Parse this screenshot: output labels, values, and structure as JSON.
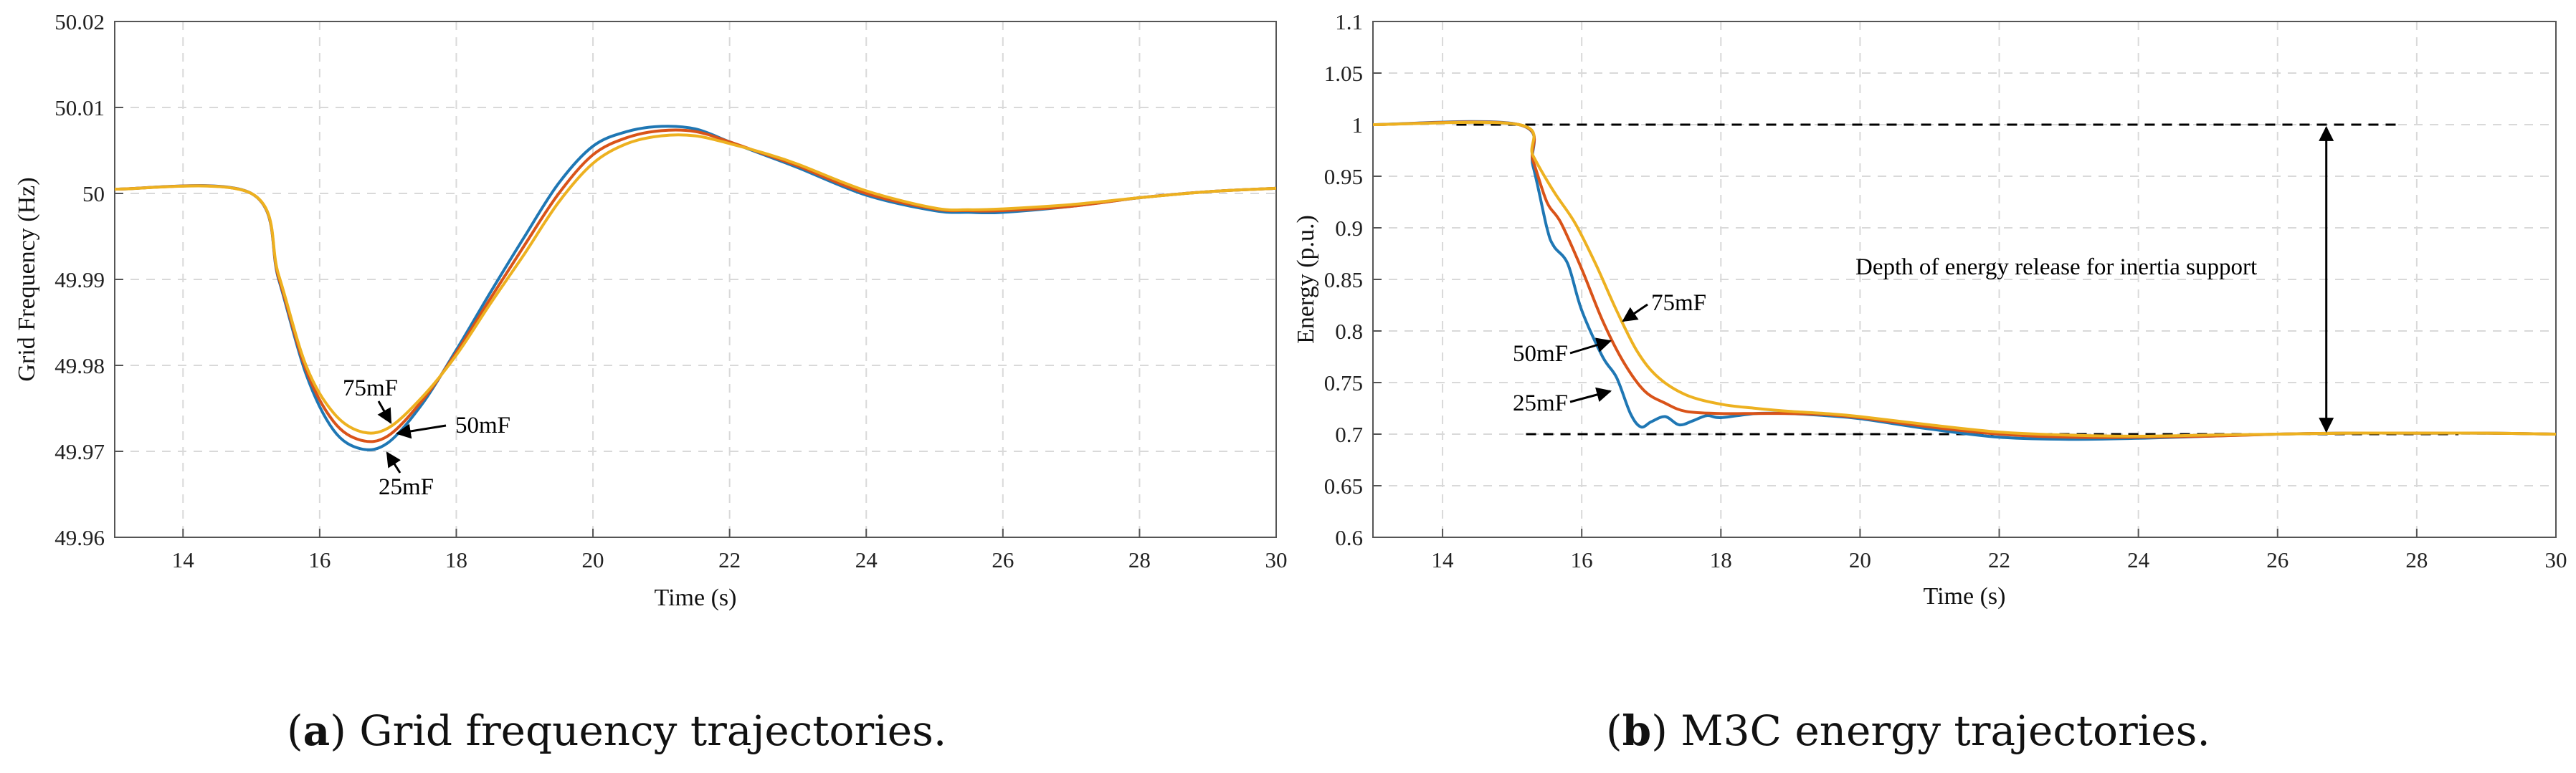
{
  "colors": {
    "blue": "#1f77b4",
    "orange": "#d95319",
    "yellow": "#edb120"
  },
  "panels": [
    {
      "caption_prefix": "(",
      "caption_letter": "a",
      "caption_text": ") Grid frequency trajectories.",
      "chart_data": {
        "type": "line",
        "xlabel": "Time (s)",
        "ylabel": "Grid Frequency (Hz)",
        "xlim": [
          13,
          30
        ],
        "ylim": [
          49.96,
          50.02
        ],
        "xticks": [
          "14",
          "16",
          "18",
          "20",
          "22",
          "24",
          "26",
          "28",
          "30"
        ],
        "yticks": [
          "49.96",
          "49.97",
          "49.98",
          "49.99",
          "50",
          "50.01",
          "50.02"
        ],
        "grid": true,
        "series": [
          {
            "name": "25mF",
            "color": "blue",
            "x": [
              13,
              15,
              15.4,
              15.8,
              16.2,
              16.6,
              17.0,
              17.5,
              18,
              18.5,
              19,
              19.5,
              20,
              20.5,
              21,
              21.5,
              22,
              22.5,
              23,
              24,
              25,
              25.5,
              26,
              27,
              28,
              29,
              30
            ],
            "y": [
              50.0005,
              50.0,
              49.99,
              49.979,
              49.9725,
              49.9703,
              49.971,
              49.9755,
              49.9818,
              49.9885,
              49.995,
              50.0012,
              50.0055,
              50.0072,
              50.0078,
              50.0075,
              50.006,
              50.0045,
              50.003,
              49.9998,
              49.998,
              49.9978,
              49.9978,
              49.9985,
              49.9995,
              50.0002,
              50.0006
            ]
          },
          {
            "name": "50mF",
            "color": "orange",
            "x": [
              13,
              15,
              15.4,
              15.8,
              16.2,
              16.6,
              17.0,
              17.5,
              18,
              18.5,
              19,
              19.5,
              20,
              20.5,
              21,
              21.5,
              22,
              22.5,
              23,
              24,
              25,
              25.5,
              26,
              27,
              28,
              29,
              30
            ],
            "y": [
              50.0005,
              50.0,
              49.9902,
              49.9795,
              49.9735,
              49.9713,
              49.9718,
              49.9759,
              49.9815,
              49.9878,
              49.994,
              50.0,
              50.0045,
              50.0065,
              50.0073,
              50.0072,
              50.006,
              50.0046,
              50.0032,
              50.0,
              49.9982,
              49.998,
              49.998,
              49.9985,
              49.9995,
              50.0002,
              50.0006
            ]
          },
          {
            "name": "75mF",
            "color": "yellow",
            "x": [
              13,
              15,
              15.4,
              15.8,
              16.2,
              16.6,
              17.0,
              17.5,
              18,
              18.5,
              19,
              19.5,
              20,
              20.5,
              21,
              21.5,
              22,
              22.5,
              23,
              24,
              25,
              25.5,
              26,
              27,
              28,
              29,
              30
            ],
            "y": [
              50.0005,
              50.0,
              49.9905,
              49.98,
              49.9745,
              49.9723,
              49.9727,
              49.9763,
              49.9812,
              49.9872,
              49.993,
              49.999,
              50.0035,
              50.0058,
              50.0067,
              50.0067,
              50.0058,
              50.0047,
              50.0034,
              50.0003,
              49.9983,
              49.9981,
              49.9982,
              49.9987,
              49.9995,
              50.0002,
              50.0006
            ]
          }
        ],
        "annotations": [
          {
            "text": "75mF"
          },
          {
            "text": "50mF"
          },
          {
            "text": "25mF"
          }
        ]
      }
    },
    {
      "caption_prefix": "(",
      "caption_letter": "b",
      "caption_text": ") M3C energy trajectories.",
      "chart_data": {
        "type": "line",
        "xlabel": "Time (s)",
        "ylabel": "Energy (p.u.)",
        "xlim": [
          13,
          30
        ],
        "ylim": [
          0.6,
          1.1
        ],
        "xticks": [
          "14",
          "16",
          "18",
          "20",
          "22",
          "24",
          "26",
          "28",
          "30"
        ],
        "yticks": [
          "0.6",
          "0.65",
          "0.7",
          "0.75",
          "0.8",
          "0.85",
          "0.9",
          "0.95",
          "1",
          "1.05",
          "1.1"
        ],
        "grid": true,
        "series": [
          {
            "name": "25mF",
            "color": "blue",
            "x": [
              13,
              15.1,
              15.3,
              15.5,
              15.6,
              15.8,
              16.0,
              16.3,
              16.5,
              16.7,
              16.85,
              17.0,
              17.2,
              17.4,
              17.6,
              17.8,
              18,
              18.5,
              19,
              19.5,
              20,
              21,
              22,
              23,
              24,
              25,
              26,
              27,
              28,
              29,
              30
            ],
            "y": [
              1.0,
              1.0,
              0.96,
              0.9,
              0.882,
              0.865,
              0.82,
              0.775,
              0.755,
              0.72,
              0.707,
              0.712,
              0.717,
              0.709,
              0.713,
              0.718,
              0.716,
              0.72,
              0.72,
              0.718,
              0.715,
              0.705,
              0.697,
              0.695,
              0.696,
              0.698,
              0.7,
              0.701,
              0.701,
              0.701,
              0.7
            ]
          },
          {
            "name": "50mF",
            "color": "orange",
            "x": [
              13,
              15.1,
              15.3,
              15.5,
              15.7,
              16.0,
              16.3,
              16.6,
              16.9,
              17.2,
              17.5,
              18,
              18.5,
              19,
              19.5,
              20,
              21,
              22,
              23,
              24,
              25,
              26,
              27,
              28,
              29,
              30
            ],
            "y": [
              1.0,
              1.0,
              0.965,
              0.925,
              0.905,
              0.86,
              0.81,
              0.77,
              0.742,
              0.73,
              0.722,
              0.72,
              0.72,
              0.72,
              0.719,
              0.716,
              0.707,
              0.7,
              0.697,
              0.697,
              0.698,
              0.7,
              0.701,
              0.701,
              0.701,
              0.7
            ]
          },
          {
            "name": "75mF",
            "color": "yellow",
            "x": [
              13,
              15.1,
              15.3,
              15.6,
              15.9,
              16.2,
              16.5,
              16.8,
              17.1,
              17.5,
              18,
              18.5,
              19,
              19.5,
              20,
              21,
              22,
              23,
              24,
              25,
              26,
              27,
              28,
              29,
              30
            ],
            "y": [
              1.0,
              1.0,
              0.97,
              0.935,
              0.905,
              0.865,
              0.82,
              0.78,
              0.755,
              0.738,
              0.729,
              0.725,
              0.722,
              0.72,
              0.717,
              0.709,
              0.702,
              0.699,
              0.698,
              0.699,
              0.7,
              0.701,
              0.701,
              0.701,
              0.7
            ]
          }
        ],
        "reference_lines": [
          {
            "y": 1.0,
            "x_start": 14.2,
            "x_end": 27.7
          },
          {
            "y": 0.7,
            "x_start": 15.2,
            "x_end": 28.6
          }
        ],
        "arrow": {
          "x": 26.7,
          "y_from": 1.0,
          "y_to": 0.7
        },
        "annotations": [
          {
            "text": "Depth of energy release for inertia support"
          },
          {
            "text": "75mF"
          },
          {
            "text": "50mF"
          },
          {
            "text": "25mF"
          }
        ]
      }
    }
  ]
}
